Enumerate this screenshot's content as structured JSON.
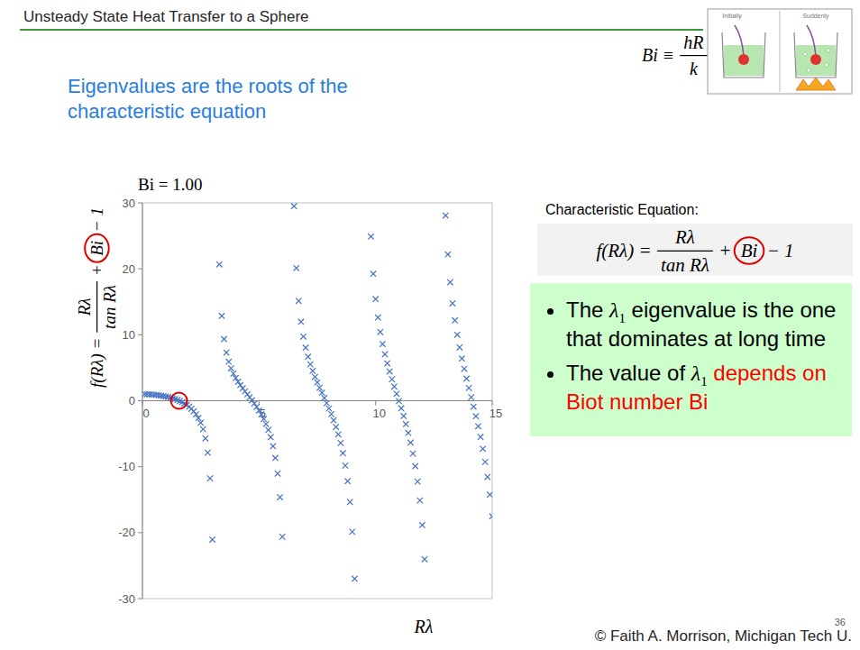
{
  "header": {
    "title": "Unsteady State Heat Transfer to a Sphere"
  },
  "intro": "Eigenvalues are the roots of the characteristic equation",
  "biot_definition": {
    "lhs": "Bi ≡",
    "numerator": "hR",
    "denominator": "k"
  },
  "thumbnail": {
    "left": "Initially",
    "right": "Suddenly"
  },
  "chart_data": {
    "type": "scatter",
    "title": "Bi = 1.00",
    "x_label": "Rλ",
    "y_label": {
      "lhs": "f(Rλ) =",
      "numerator": "Rλ",
      "denominator": "tan Rλ",
      "plus": "+",
      "highlight": "Bi",
      "rest": "− 1"
    },
    "color": "#4472c4",
    "marker": "x",
    "grid": false,
    "x": [
      0.1,
      0.2,
      0.3,
      0.4,
      0.5,
      0.6,
      0.7,
      0.8,
      0.9,
      1.0,
      1.1,
      1.2,
      1.3,
      1.4,
      1.5,
      1.6,
      1.7,
      1.8,
      1.9,
      2.0,
      2.1,
      2.2,
      2.3,
      2.4,
      2.5,
      2.6,
      2.7,
      2.8,
      2.9,
      3.0,
      3.3,
      3.4,
      3.5,
      3.6,
      3.7,
      3.8,
      3.9,
      4.0,
      4.1,
      4.2,
      4.3,
      4.4,
      4.5,
      4.6,
      4.7,
      4.8,
      4.9,
      5.0,
      5.1,
      5.2,
      5.3,
      5.4,
      5.5,
      5.6,
      5.7,
      5.8,
      5.9,
      6.0,
      6.5,
      6.6,
      6.7,
      6.8,
      6.9,
      7.0,
      7.1,
      7.2,
      7.3,
      7.4,
      7.5,
      7.6,
      7.7,
      7.8,
      7.9,
      8.0,
      8.1,
      8.2,
      8.3,
      8.4,
      8.5,
      8.6,
      8.7,
      8.8,
      8.9,
      9.0,
      9.1,
      9.8,
      9.9,
      10.0,
      10.1,
      10.2,
      10.3,
      10.4,
      10.5,
      10.6,
      10.7,
      10.8,
      10.9,
      11.0,
      11.1,
      11.2,
      11.3,
      11.4,
      11.5,
      11.6,
      11.7,
      11.8,
      11.9,
      12.0,
      12.1,
      13.0,
      13.1,
      13.2,
      13.3,
      13.4,
      13.5,
      13.6,
      13.7,
      13.8,
      13.9,
      14.0,
      14.1,
      14.2,
      14.3,
      14.4,
      14.5,
      14.6,
      14.7,
      14.8,
      14.9,
      15.0
    ],
    "values": [
      0.997,
      0.987,
      0.97,
      0.946,
      0.915,
      0.877,
      0.831,
      0.777,
      0.714,
      0.642,
      0.56,
      0.467,
      0.361,
      0.241,
      0.106,
      -0.047,
      -0.221,
      -0.42,
      -0.649,
      -0.915,
      -1.228,
      -1.601,
      -2.055,
      -2.62,
      -3.347,
      -4.322,
      -5.712,
      -7.876,
      -11.77,
      -21.05,
      20.66,
      12.86,
      9.34,
      7.3,
      5.92,
      4.91,
      4.12,
      3.46,
      2.88,
      2.36,
      1.88,
      1.42,
      0.97,
      0.52,
      0.06,
      -0.42,
      -0.93,
      -1.48,
      -2.08,
      -2.76,
      -3.53,
      -4.44,
      -5.53,
      -6.89,
      -8.67,
      -11.05,
      -14.63,
      -20.62,
      29.5,
      20.12,
      15.13,
      11.97,
      9.73,
      8.03,
      6.67,
      5.52,
      4.52,
      3.61,
      2.77,
      1.98,
      1.2,
      0.42,
      -0.36,
      -1.18,
      -2.03,
      -2.96,
      -3.97,
      -5.1,
      -6.41,
      -7.95,
      -9.82,
      -12.19,
      -15.36,
      -19.87,
      -26.99,
      24.88,
      19.24,
      15.42,
      12.61,
      10.41,
      8.6,
      7.04,
      5.67,
      4.43,
      3.26,
      2.14,
      1.05,
      -0.05,
      -1.16,
      -2.32,
      -3.55,
      -4.88,
      -6.35,
      -8.01,
      -9.94,
      -12.25,
      -15.12,
      -18.85,
      -24.03,
      28.08,
      22.18,
      17.97,
      14.75,
      12.17,
      10.0,
      8.09,
      6.4,
      4.84,
      3.36,
      1.93,
      0.53,
      -0.89,
      -2.35,
      -3.87,
      -5.5,
      -7.29,
      -9.28,
      -11.56,
      -14.24,
      -17.52
    ],
    "xlim": [
      0,
      15
    ],
    "ylim": [
      -30,
      30
    ],
    "xticks": [
      0,
      5,
      10,
      15
    ],
    "yticks": [
      -30,
      -20,
      -10,
      0,
      10,
      20,
      30
    ]
  },
  "equation": {
    "heading": "Characteristic Equation:",
    "lhs": "f(Rλ) =",
    "numerator": "Rλ",
    "denominator": "tan Rλ",
    "plus": "+",
    "highlight": "Bi",
    "rest": "− 1"
  },
  "bullets": [
    [
      {
        "text": "The ",
        "style": "plain"
      },
      {
        "text": "λ",
        "sub": "1",
        "style": "math"
      },
      {
        "text": " eigenvalue is the one that dominates at long time",
        "style": "plain"
      }
    ],
    [
      {
        "text": "The value of ",
        "style": "plain"
      },
      {
        "text": "λ",
        "sub": "1",
        "style": "math"
      },
      {
        "text": " depends on Biot number Bi",
        "style": "red"
      }
    ]
  ],
  "footer": {
    "copyright": "© Faith A. Morrison, Michigan Tech U.",
    "page": "36"
  }
}
